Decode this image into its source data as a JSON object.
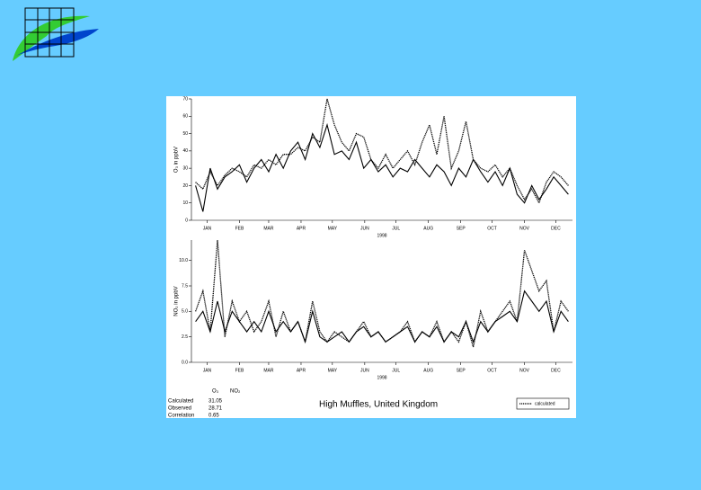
{
  "chart_data": [
    {
      "type": "line",
      "ylabel": "O₃ in ppbV",
      "xlabel": "1998",
      "xlim": [
        0,
        365
      ],
      "ylim": [
        0,
        70
      ],
      "yticks": [
        0,
        10,
        20,
        30,
        40,
        50,
        60,
        70
      ],
      "xticks": [
        {
          "value": 15,
          "label": "JAN"
        },
        {
          "value": 46,
          "label": "FEB"
        },
        {
          "value": 74,
          "label": "MAR"
        },
        {
          "value": 105,
          "label": "APR"
        },
        {
          "value": 135,
          "label": "MAY"
        },
        {
          "value": 166,
          "label": "JUN"
        },
        {
          "value": 196,
          "label": "JUL"
        },
        {
          "value": 227,
          "label": "AUG"
        },
        {
          "value": 258,
          "label": "SEP"
        },
        {
          "value": 288,
          "label": "OCT"
        },
        {
          "value": 319,
          "label": "NOV"
        },
        {
          "value": 349,
          "label": "DEC"
        }
      ],
      "x": [
        4,
        11,
        18,
        25,
        32,
        39,
        46,
        53,
        60,
        67,
        74,
        81,
        88,
        95,
        102,
        109,
        116,
        123,
        130,
        137,
        144,
        151,
        158,
        165,
        172,
        179,
        186,
        193,
        200,
        207,
        214,
        221,
        228,
        235,
        242,
        249,
        256,
        263,
        270,
        277,
        284,
        291,
        298,
        305,
        312,
        319,
        326,
        333,
        340,
        347,
        354,
        361
      ],
      "series": [
        {
          "color": "#000000",
          "style": "solid",
          "values": [
            20,
            5,
            30,
            18,
            25,
            28,
            32,
            22,
            30,
            35,
            28,
            38,
            30,
            40,
            45,
            35,
            50,
            42,
            55,
            38,
            40,
            35,
            45,
            30,
            35,
            28,
            32,
            25,
            30,
            28,
            35,
            30,
            25,
            32,
            28,
            20,
            30,
            25,
            35,
            28,
            22,
            28,
            20,
            30,
            15,
            10,
            20,
            12,
            18,
            25,
            20,
            15
          ]
        },
        {
          "name": "calculated",
          "color": "#000000",
          "style": "dotted",
          "values": [
            22,
            18,
            28,
            20,
            26,
            30,
            28,
            25,
            32,
            30,
            35,
            32,
            38,
            38,
            42,
            40,
            48,
            45,
            70,
            55,
            45,
            40,
            50,
            48,
            35,
            30,
            38,
            30,
            35,
            40,
            32,
            45,
            55,
            38,
            60,
            30,
            40,
            57,
            35,
            30,
            28,
            32,
            25,
            30,
            20,
            12,
            18,
            10,
            22,
            28,
            25,
            20
          ]
        }
      ]
    },
    {
      "type": "line",
      "ylabel": "NO₂ in ppbV",
      "xlabel": "1998",
      "xlim": [
        0,
        365
      ],
      "ylim": [
        0,
        12
      ],
      "yticks": [
        {
          "value": 0,
          "label": "0.0"
        },
        {
          "value": 2.5,
          "label": "2.5"
        },
        {
          "value": 5,
          "label": "5.0"
        },
        {
          "value": 7.5,
          "label": "7.5"
        },
        {
          "value": 10,
          "label": "10.0"
        }
      ],
      "xticks": [
        {
          "value": 15,
          "label": "JAN"
        },
        {
          "value": 46,
          "label": "FEB"
        },
        {
          "value": 74,
          "label": "MAR"
        },
        {
          "value": 105,
          "label": "APR"
        },
        {
          "value": 135,
          "label": "MAY"
        },
        {
          "value": 166,
          "label": "JUN"
        },
        {
          "value": 196,
          "label": "JUL"
        },
        {
          "value": 227,
          "label": "AUG"
        },
        {
          "value": 258,
          "label": "SEP"
        },
        {
          "value": 288,
          "label": "OCT"
        },
        {
          "value": 319,
          "label": "NOV"
        },
        {
          "value": 349,
          "label": "DEC"
        }
      ],
      "x": [
        4,
        11,
        18,
        25,
        32,
        39,
        46,
        53,
        60,
        67,
        74,
        81,
        88,
        95,
        102,
        109,
        116,
        123,
        130,
        137,
        144,
        151,
        158,
        165,
        172,
        179,
        186,
        193,
        200,
        207,
        214,
        221,
        228,
        235,
        242,
        249,
        256,
        263,
        270,
        277,
        284,
        291,
        298,
        305,
        312,
        319,
        326,
        333,
        340,
        347,
        354,
        361
      ],
      "series": [
        {
          "color": "#000000",
          "style": "solid",
          "values": [
            4,
            5,
            3,
            6,
            3,
            5,
            4,
            3,
            4,
            3,
            5,
            3,
            4,
            3,
            4,
            2,
            5,
            2.5,
            2,
            2.5,
            3,
            2,
            3,
            3.5,
            2.5,
            3,
            2,
            2.5,
            3,
            3.5,
            2,
            3,
            2.5,
            3.5,
            2,
            3,
            2.5,
            4,
            2,
            4,
            3,
            4,
            4.5,
            5,
            4,
            7,
            6,
            5,
            6,
            3,
            5,
            4
          ]
        },
        {
          "name": "calculated",
          "color": "#000000",
          "style": "dotted",
          "values": [
            5,
            7,
            3,
            12,
            2.5,
            6,
            4,
            5,
            3,
            4,
            6,
            2.5,
            5,
            3,
            4,
            2,
            6,
            3,
            2,
            3,
            2.5,
            2,
            3,
            4,
            2.5,
            3,
            2,
            2.5,
            3,
            4,
            2,
            3,
            2.5,
            4,
            2,
            3,
            2,
            4,
            1.5,
            5,
            3,
            4,
            5,
            6,
            4,
            11,
            9,
            7,
            8,
            3,
            6,
            5
          ]
        }
      ]
    }
  ],
  "figure": {
    "title": "High Muffles, United Kingdom",
    "columns": [
      "O₃",
      "NO₂"
    ],
    "rows": [
      {
        "label": "Calculated",
        "value": 31.05
      },
      {
        "label": "Observed",
        "value": 28.71
      },
      {
        "label": "Correlation",
        "value": 0.65
      }
    ]
  }
}
